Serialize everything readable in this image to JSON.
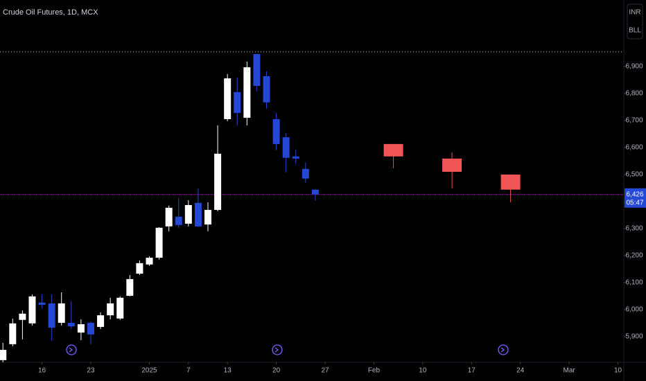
{
  "chart_data": {
    "type": "candlestick",
    "title": "Crude Oil Futures, 1D, MCX",
    "buttons": [
      "INR",
      "BLL"
    ],
    "xlim": [
      -0.3,
      63.6
    ],
    "ylim": [
      5805,
      7146
    ],
    "xticks": [
      {
        "value": 4,
        "label": "16"
      },
      {
        "value": 9,
        "label": "23"
      },
      {
        "value": 15,
        "label": "2025"
      },
      {
        "value": 19,
        "label": "7"
      },
      {
        "value": 23,
        "label": "13"
      },
      {
        "value": 28,
        "label": "20"
      },
      {
        "value": 33,
        "label": "27"
      },
      {
        "value": 38,
        "label": "Feb"
      },
      {
        "value": 43,
        "label": "10"
      },
      {
        "value": 48,
        "label": "17"
      },
      {
        "value": 53,
        "label": "24"
      },
      {
        "value": 58,
        "label": "Mar"
      },
      {
        "value": 63,
        "label": "10"
      }
    ],
    "yticks": [
      {
        "value": 5900,
        "label": "5,900"
      },
      {
        "value": 6000,
        "label": "6,000"
      },
      {
        "value": 6100,
        "label": "6,100"
      },
      {
        "value": 6200,
        "label": "6,200"
      },
      {
        "value": 6300,
        "label": "6,300"
      },
      {
        "value": 6400,
        "label": "6,400"
      },
      {
        "value": 6500,
        "label": "6,500"
      },
      {
        "value": 6600,
        "label": "6,600"
      },
      {
        "value": 6700,
        "label": "6,700"
      },
      {
        "value": 6800,
        "label": "6,800"
      },
      {
        "value": 6900,
        "label": "6,900"
      }
    ],
    "up_color": "#ffffff",
    "down_color": "#2447d4",
    "x": [
      0,
      1,
      2,
      3,
      4,
      5,
      6,
      7,
      8,
      9,
      10,
      11,
      12,
      13,
      14,
      15,
      16,
      17,
      18,
      19,
      20,
      21,
      22,
      23,
      24,
      25,
      26,
      27,
      28,
      29,
      30,
      31,
      32
    ],
    "open": [
      5813,
      5872,
      5962,
      5949,
      6026,
      6023,
      5951,
      5951,
      5915,
      5951,
      5936,
      5979,
      5967,
      6051,
      6133,
      6167,
      6192,
      6308,
      6344,
      6318,
      6395,
      6315,
      6369,
      6705,
      6805,
      6710,
      6946,
      6864,
      6705,
      6638,
      6567,
      6521,
      6444
    ],
    "high": [
      5877,
      5967,
      5997,
      6056,
      6056,
      6056,
      6064,
      6031,
      5964,
      5956,
      5990,
      6044,
      6049,
      6128,
      6182,
      6197,
      6305,
      6385,
      6413,
      6405,
      6449,
      6397,
      6682,
      6872,
      6859,
      6918,
      6946,
      6882,
      6728,
      6654,
      6592,
      6544,
      6446
    ],
    "low": [
      5805,
      5864,
      5890,
      5941,
      6005,
      5885,
      5941,
      5928,
      5887,
      5872,
      5928,
      5964,
      5962,
      6049,
      6128,
      6162,
      6185,
      6290,
      6303,
      6308,
      6305,
      6290,
      6364,
      6697,
      6682,
      6682,
      6808,
      6744,
      6590,
      6508,
      6538,
      6469,
      6403
    ],
    "close": [
      5851,
      5949,
      5985,
      6049,
      6018,
      5933,
      6023,
      5938,
      5946,
      5908,
      5979,
      6023,
      6044,
      6113,
      6172,
      6192,
      6303,
      6377,
      6313,
      6387,
      6308,
      6369,
      6577,
      6856,
      6728,
      6897,
      6828,
      6767,
      6613,
      6562,
      6559,
      6485,
      6426
    ],
    "projections": {
      "color": "#f05454",
      "x": [
        40,
        46,
        52
      ],
      "top": [
        6613,
        6559,
        6500
      ],
      "bottom": [
        6567,
        6510,
        6444
      ],
      "high": [
        6613,
        6582,
        6500
      ],
      "low": [
        6523,
        6449,
        6397
      ]
    },
    "reference_line": {
      "value": 6954,
      "color": "#cccccc"
    },
    "last_price": {
      "value": 6426,
      "label": "6,426",
      "countdown": "05:47",
      "color": "#9c27b0",
      "label_color": "#2447d4"
    }
  }
}
